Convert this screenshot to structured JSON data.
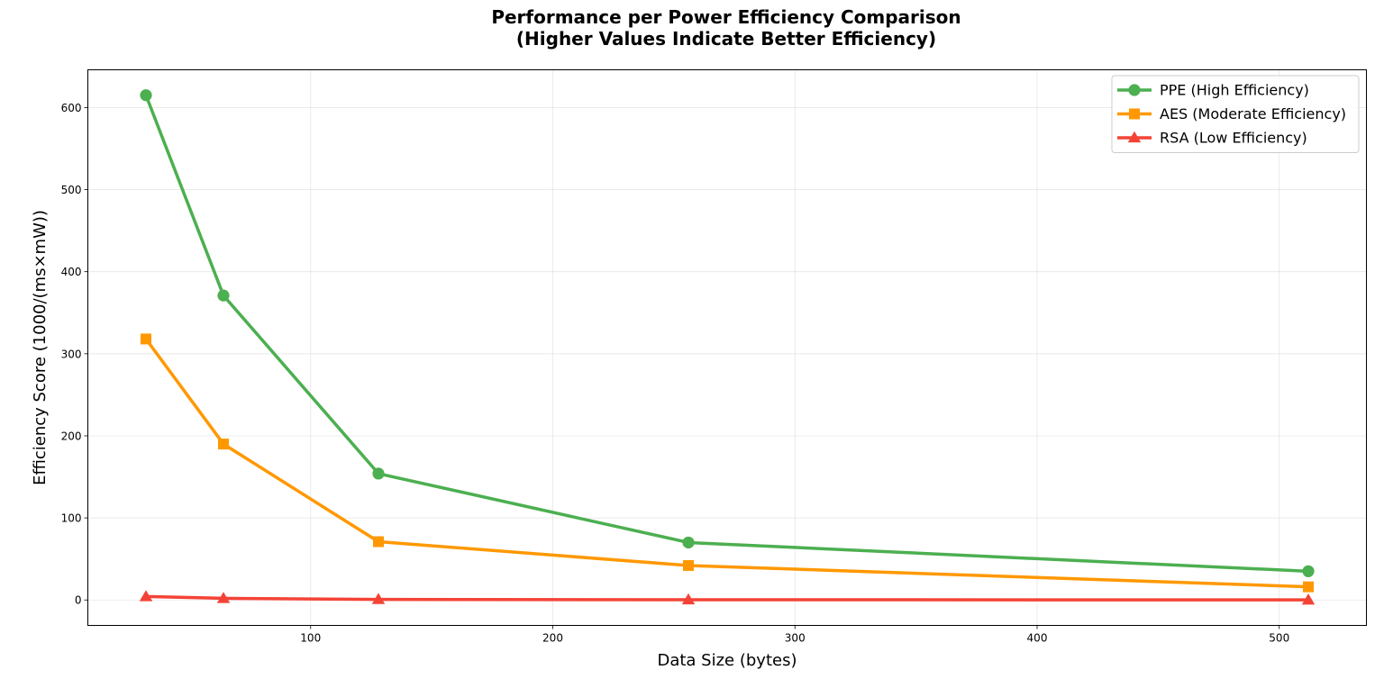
{
  "chart_data": {
    "type": "line",
    "title_line1": "Performance per Power Efficiency Comparison",
    "title_line2": "(Higher Values Indicate Better Efficiency)",
    "xlabel": "Data Size (bytes)",
    "ylabel": "Efficiency Score (1000/(ms×mW))",
    "x": [
      32,
      64,
      128,
      256,
      512
    ],
    "xlim": [
      8,
      536
    ],
    "ylim": [
      -31,
      646
    ],
    "xticks": [
      100,
      200,
      300,
      400,
      500
    ],
    "yticks": [
      0,
      100,
      200,
      300,
      400,
      500,
      600
    ],
    "grid": true,
    "legend_position": "top-right",
    "series": [
      {
        "name": "PPE (High Efficiency)",
        "color": "#4caf50",
        "marker": "circle",
        "values": [
          615,
          371,
          154,
          70,
          35
        ]
      },
      {
        "name": "AES (Moderate Efficiency)",
        "color": "#ff9800",
        "marker": "square",
        "values": [
          318,
          190,
          71,
          42,
          16
        ]
      },
      {
        "name": "RSA (Low Efficiency)",
        "color": "#f44336",
        "marker": "triangle",
        "values": [
          4.2,
          2.0,
          0.7,
          0.3,
          0.1
        ]
      }
    ]
  }
}
